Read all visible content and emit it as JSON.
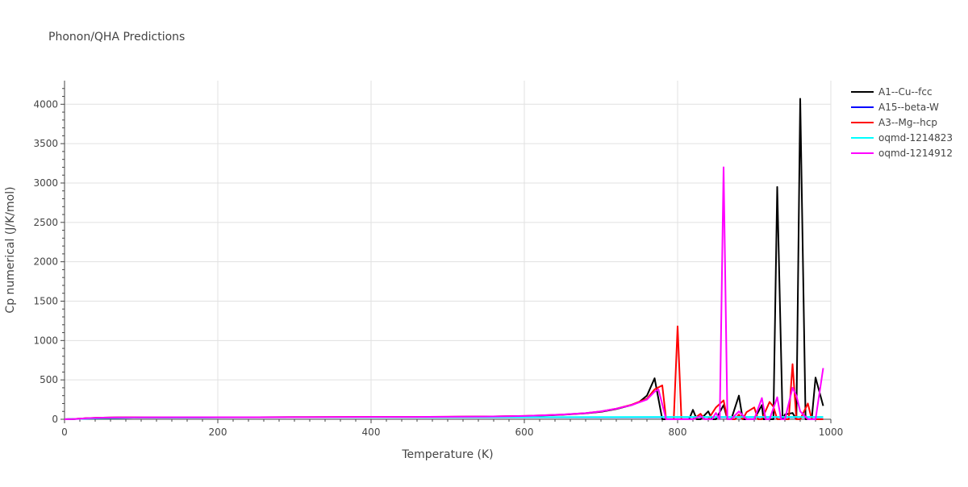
{
  "chart_data": {
    "type": "line",
    "title": "Phonon/QHA Predictions",
    "xlabel": "Temperature (K)",
    "ylabel": "Cp numerical (J/K/mol)",
    "xlim": [
      0,
      1000
    ],
    "ylim": [
      0,
      4300
    ],
    "x_ticks": [
      0,
      200,
      400,
      600,
      800,
      1000
    ],
    "y_ticks": [
      0,
      500,
      1000,
      1500,
      2000,
      2500,
      3000,
      3500,
      4000
    ],
    "grid": true,
    "legend_position": "right",
    "series": [
      {
        "name": "A1--Cu--fcc",
        "color": "#000000",
        "points": [
          [
            0,
            0
          ],
          [
            10,
            2
          ],
          [
            20,
            8
          ],
          [
            30,
            14
          ],
          [
            50,
            20
          ],
          [
            70,
            23
          ],
          [
            100,
            24
          ],
          [
            150,
            25
          ],
          [
            200,
            25
          ],
          [
            250,
            26
          ],
          [
            300,
            27
          ],
          [
            350,
            27
          ],
          [
            400,
            28
          ],
          [
            450,
            29
          ],
          [
            500,
            31
          ],
          [
            550,
            34
          ],
          [
            600,
            40
          ],
          [
            620,
            46
          ],
          [
            650,
            58
          ],
          [
            680,
            75
          ],
          [
            700,
            95
          ],
          [
            720,
            130
          ],
          [
            740,
            180
          ],
          [
            750,
            220
          ],
          [
            760,
            300
          ],
          [
            770,
            520
          ],
          [
            780,
            0
          ],
          [
            790,
            0
          ],
          [
            800,
            0
          ],
          [
            810,
            0
          ],
          [
            815,
            0
          ],
          [
            820,
            120
          ],
          [
            825,
            0
          ],
          [
            830,
            0
          ],
          [
            840,
            100
          ],
          [
            845,
            0
          ],
          [
            850,
            0
          ],
          [
            860,
            180
          ],
          [
            865,
            0
          ],
          [
            870,
            0
          ],
          [
            880,
            300
          ],
          [
            885,
            0
          ],
          [
            890,
            0
          ],
          [
            900,
            0
          ],
          [
            910,
            180
          ],
          [
            912,
            0
          ],
          [
            920,
            0
          ],
          [
            925,
            0
          ],
          [
            930,
            2950
          ],
          [
            937,
            0
          ],
          [
            940,
            60
          ],
          [
            950,
            80
          ],
          [
            955,
            0
          ],
          [
            960,
            4070
          ],
          [
            967,
            0
          ],
          [
            975,
            0
          ],
          [
            980,
            530
          ],
          [
            990,
            170
          ]
        ]
      },
      {
        "name": "A15--beta-W",
        "color": "#0000ff",
        "points": [
          [
            0,
            0
          ],
          [
            20,
            5
          ],
          [
            50,
            15
          ],
          [
            100,
            22
          ],
          [
            200,
            24
          ],
          [
            300,
            25
          ],
          [
            400,
            25
          ],
          [
            500,
            26
          ],
          [
            600,
            26
          ],
          [
            700,
            26
          ],
          [
            800,
            27
          ],
          [
            900,
            27
          ],
          [
            990,
            27
          ]
        ]
      },
      {
        "name": "A3--Mg--hcp",
        "color": "#ff0000",
        "points": [
          [
            0,
            0
          ],
          [
            10,
            2
          ],
          [
            20,
            8
          ],
          [
            30,
            14
          ],
          [
            50,
            20
          ],
          [
            70,
            23
          ],
          [
            100,
            24
          ],
          [
            150,
            25
          ],
          [
            200,
            25
          ],
          [
            250,
            26
          ],
          [
            300,
            27
          ],
          [
            350,
            28
          ],
          [
            400,
            29
          ],
          [
            450,
            30
          ],
          [
            500,
            32
          ],
          [
            550,
            35
          ],
          [
            600,
            42
          ],
          [
            620,
            48
          ],
          [
            650,
            60
          ],
          [
            680,
            78
          ],
          [
            700,
            100
          ],
          [
            720,
            135
          ],
          [
            740,
            185
          ],
          [
            760,
            260
          ],
          [
            770,
            380
          ],
          [
            780,
            430
          ],
          [
            785,
            0
          ],
          [
            795,
            0
          ],
          [
            800,
            1180
          ],
          [
            805,
            0
          ],
          [
            810,
            0
          ],
          [
            820,
            0
          ],
          [
            830,
            70
          ],
          [
            835,
            0
          ],
          [
            840,
            0
          ],
          [
            850,
            150
          ],
          [
            860,
            240
          ],
          [
            865,
            0
          ],
          [
            875,
            0
          ],
          [
            880,
            60
          ],
          [
            885,
            0
          ],
          [
            890,
            90
          ],
          [
            900,
            150
          ],
          [
            905,
            0
          ],
          [
            910,
            0
          ],
          [
            920,
            220
          ],
          [
            925,
            160
          ],
          [
            930,
            0
          ],
          [
            940,
            0
          ],
          [
            945,
            0
          ],
          [
            950,
            700
          ],
          [
            955,
            0
          ],
          [
            960,
            0
          ],
          [
            970,
            200
          ],
          [
            975,
            0
          ],
          [
            990,
            0
          ]
        ]
      },
      {
        "name": "oqmd-1214823",
        "color": "#00ffff",
        "points": [
          [
            0,
            0
          ],
          [
            20,
            6
          ],
          [
            50,
            16
          ],
          [
            100,
            22
          ],
          [
            200,
            24
          ],
          [
            300,
            25
          ],
          [
            400,
            26
          ],
          [
            500,
            27
          ],
          [
            600,
            27
          ],
          [
            700,
            28
          ],
          [
            800,
            29
          ],
          [
            900,
            29
          ],
          [
            990,
            29
          ]
        ]
      },
      {
        "name": "oqmd-1214912",
        "color": "#ff00ff",
        "points": [
          [
            0,
            0
          ],
          [
            10,
            2
          ],
          [
            20,
            8
          ],
          [
            30,
            14
          ],
          [
            50,
            20
          ],
          [
            70,
            23
          ],
          [
            100,
            24
          ],
          [
            150,
            25
          ],
          [
            200,
            25
          ],
          [
            250,
            26
          ],
          [
            300,
            27
          ],
          [
            350,
            28
          ],
          [
            400,
            29
          ],
          [
            450,
            30
          ],
          [
            500,
            32
          ],
          [
            550,
            35
          ],
          [
            600,
            42
          ],
          [
            620,
            48
          ],
          [
            650,
            60
          ],
          [
            680,
            78
          ],
          [
            700,
            100
          ],
          [
            720,
            135
          ],
          [
            740,
            180
          ],
          [
            760,
            250
          ],
          [
            770,
            350
          ],
          [
            775,
            380
          ],
          [
            785,
            0
          ],
          [
            800,
            0
          ],
          [
            810,
            0
          ],
          [
            820,
            0
          ],
          [
            830,
            40
          ],
          [
            835,
            0
          ],
          [
            845,
            0
          ],
          [
            850,
            80
          ],
          [
            855,
            0
          ],
          [
            860,
            3200
          ],
          [
            865,
            0
          ],
          [
            870,
            0
          ],
          [
            880,
            100
          ],
          [
            885,
            50
          ],
          [
            890,
            0
          ],
          [
            900,
            0
          ],
          [
            910,
            270
          ],
          [
            915,
            0
          ],
          [
            920,
            0
          ],
          [
            930,
            280
          ],
          [
            935,
            0
          ],
          [
            940,
            0
          ],
          [
            950,
            400
          ],
          [
            955,
            300
          ],
          [
            960,
            100
          ],
          [
            970,
            0
          ],
          [
            980,
            0
          ],
          [
            990,
            650
          ]
        ]
      }
    ]
  }
}
